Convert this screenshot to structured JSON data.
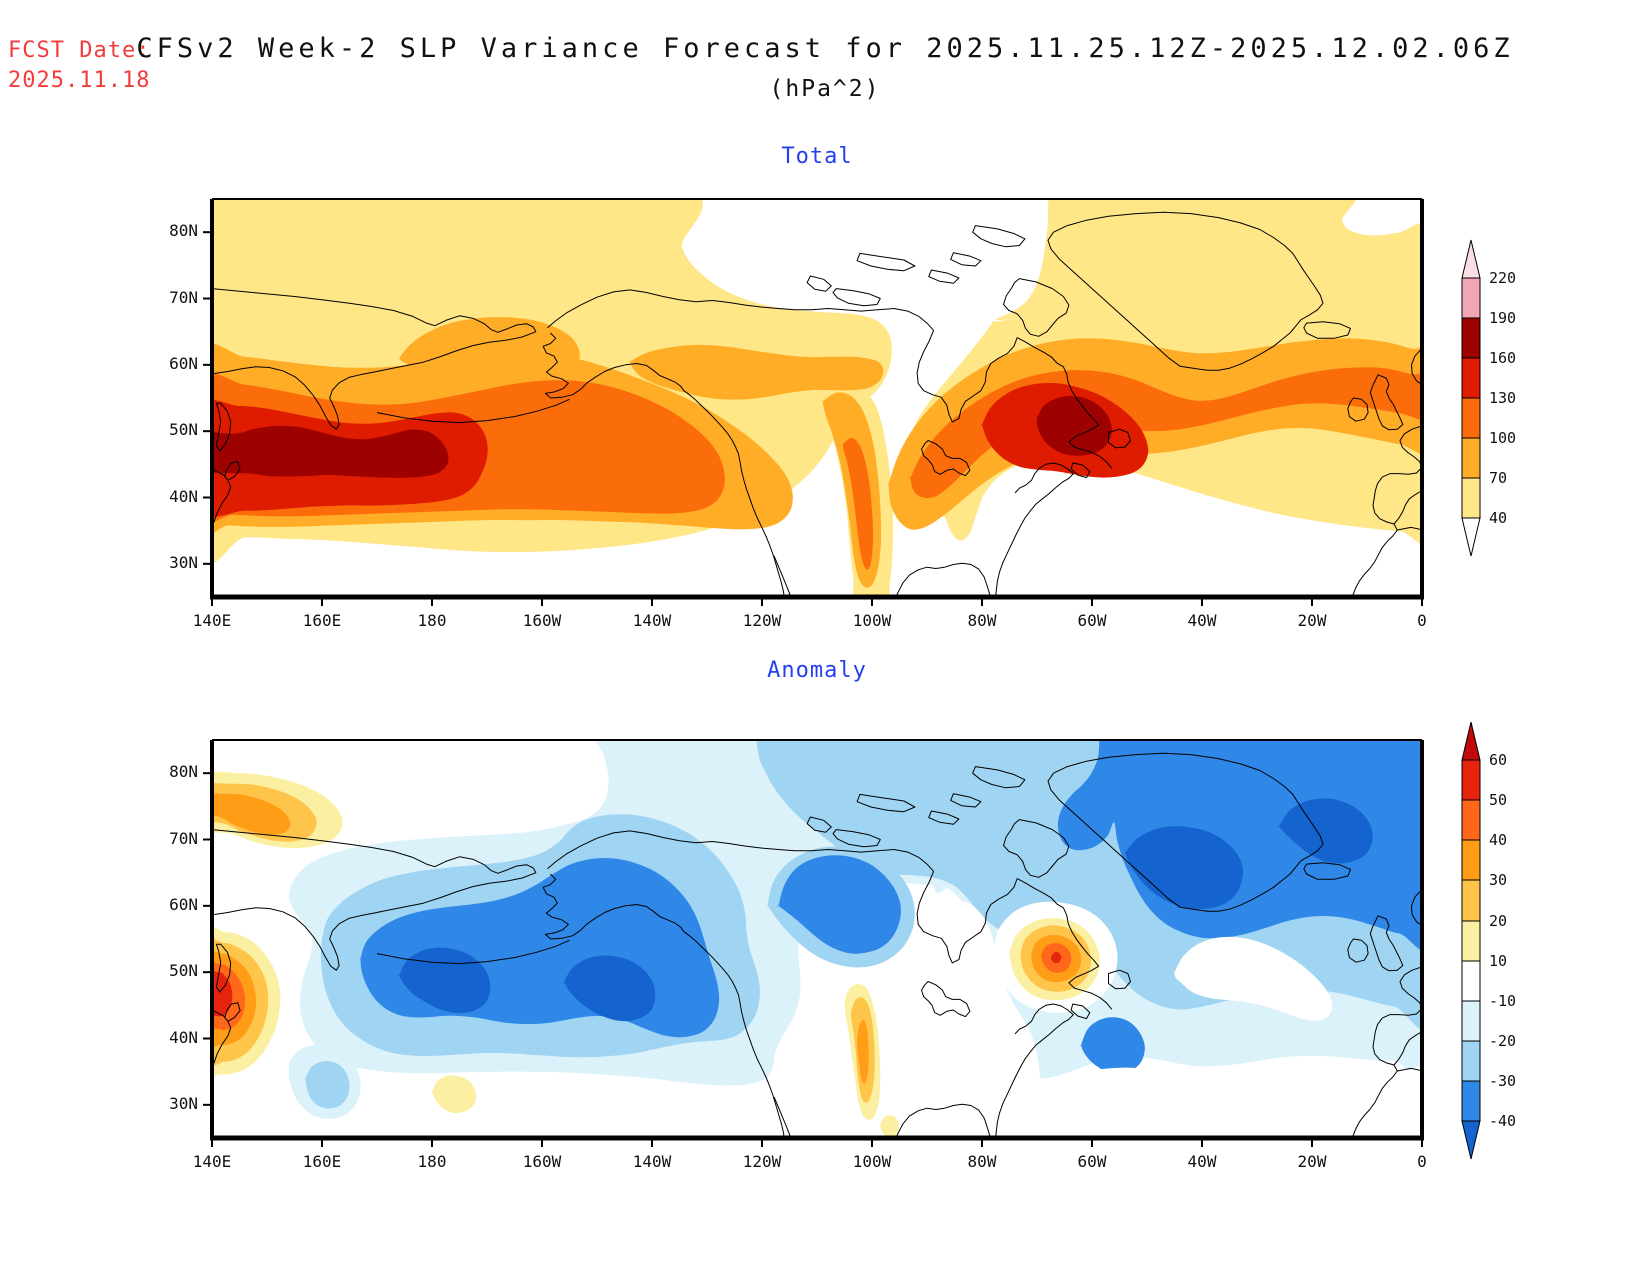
{
  "header": {
    "fcst_label": "FCST Date:",
    "fcst_date": "2025.11.18",
    "fcst_color": "#f23c3c",
    "title": "CFSv2 Week-2 SLP Variance Forecast for 2025.11.25.12Z-2025.12.02.06Z",
    "subtitle": "(hPa^2)"
  },
  "panels": [
    {
      "id": "total",
      "title": "Total",
      "title_color": "#2440ee",
      "x_ticks": [
        "140E",
        "160E",
        "180",
        "160W",
        "140W",
        "120W",
        "100W",
        "80W",
        "60W",
        "40W",
        "20W",
        "0"
      ],
      "y_ticks": [
        "80N",
        "70N",
        "60N",
        "50N",
        "40N",
        "30N"
      ],
      "level_colors": {
        "40": "#FFE687",
        "70": "#FFAD26",
        "100": "#FB6D0A",
        "130": "#DF1B00",
        "160": "#9D0100"
      },
      "colorbar": {
        "labels_top_to_bottom": [
          "220",
          "190",
          "160",
          "130",
          "100",
          "70",
          "40"
        ],
        "segment_colors_top_to_bottom": [
          "#F2A6B4",
          "#9D0100",
          "#DF1B00",
          "#FB6D0A",
          "#FFAD26",
          "#FFE687"
        ],
        "top_cap_color": "#FBDDE4",
        "bottom_cap_color": "#FFFFFF"
      }
    },
    {
      "id": "anomaly",
      "title": "Anomaly",
      "title_color": "#2440ee",
      "x_ticks": [
        "140E",
        "160E",
        "180",
        "160W",
        "140W",
        "120W",
        "100W",
        "80W",
        "60W",
        "40W",
        "20W",
        "0"
      ],
      "y_ticks": [
        "80N",
        "70N",
        "60N",
        "50N",
        "40N",
        "30N"
      ],
      "level_colors": {
        "-40": "#1563CF",
        "-30": "#2F87E8",
        "-20": "#9FD4F2",
        "-10": "#DCF2FB",
        "10": "#FBF0A2",
        "20": "#FFC44A",
        "30": "#FF9D17",
        "40": "#FF671A",
        "50": "#E6230D"
      },
      "colorbar": {
        "labels_top_to_bottom": [
          "60",
          "50",
          "40",
          "30",
          "20",
          "10",
          "-10",
          "-20",
          "-30",
          "-40"
        ],
        "segment_colors_top_to_bottom": [
          "#E6230D",
          "#FF671A",
          "#FF9D17",
          "#FFC44A",
          "#FBF0A2",
          "#FFFFFF",
          "#DCF2FB",
          "#9FD4F2",
          "#2F87E8"
        ],
        "top_cap_color": "#C00A0A",
        "bottom_cap_color": "#1563CF"
      }
    }
  ],
  "chart_data": [
    {
      "panel": "Total",
      "type": "heatmap",
      "subtype": "filled_contour_map",
      "field": "Week-2 sea-level-pressure variance forecast",
      "units": "hPa^2",
      "valid_period": "2025.11.25.12Z-2025.12.02.06Z",
      "forecast_date": "2025.11.18",
      "lon_range": [
        "140E",
        "0"
      ],
      "lat_range": [
        "~25N",
        "~85N"
      ],
      "contour_levels": [
        40,
        70,
        100,
        130,
        160,
        190,
        220
      ],
      "features": [
        {
          "region": "Northwest Pacific storm track, 145E-180 / 41-52N",
          "value": "maximum 160-190 (dark red), two cores near 153E,46N and 170E,47N"
        },
        {
          "region": "Gulf of Alaska / NE Pacific, 170W-130W / 48-58N",
          "value": "100-130 band extending to NA west coast"
        },
        {
          "region": "Bering Strait region up to ~67N",
          "value": "70-100"
        },
        {
          "region": "Central North America tongue along ~105-100W, 27-55N",
          "value": "70-100 with inner 100-130 streak"
        },
        {
          "region": "Eastern Canada (Quebec/Labrador), 78W-52W / 45-57N",
          "value": "maximum 160-190 (dark red) core near 62W,52N"
        },
        {
          "region": "North Atlantic band to British Isles / Iceland, 55-65N",
          "value": "100-130"
        },
        {
          "region": "Hemispheric mid/high-latitude background",
          "value": "40-70 (yellow), white over Arctic islands, interior N. America and subtropics"
        }
      ]
    },
    {
      "panel": "Anomaly",
      "type": "heatmap",
      "subtype": "filled_contour_map",
      "field": "Week-2 SLP variance anomaly",
      "units": "hPa^2",
      "lon_range": [
        "140E",
        "0"
      ],
      "lat_range": [
        "~25N",
        "~85N"
      ],
      "contour_levels": [
        -40,
        -30,
        -20,
        -10,
        10,
        20,
        30,
        40,
        50,
        60
      ],
      "features": [
        {
          "region": "North Pacific, 160E-125W / 35-60N",
          "value": "large negative anomaly, -30 with cores below -40 near 178E,46N and 148W,45N"
        },
        {
          "region": "Bering Strait / Chukchi",
          "value": "-20 to -30"
        },
        {
          "region": "Central-north Canada, 115W-95W / 53-67N",
          "value": "-30 blob"
        },
        {
          "region": "Greenland / N Atlantic / Iceland / NW Europe, 60W-0 / 50-85N",
          "value": "widespread -30 with -40 cores"
        },
        {
          "region": "South of Newfoundland, 62W-50W / 35-43N",
          "value": "-30 lobe"
        },
        {
          "region": "Sea of Japan / NW Pacific coast ~143E, 47N",
          "value": "positive max +50 (red core) ringed by +10..+40"
        },
        {
          "region": "East Siberian Arctic ~155E, 75N",
          "value": "+30 orange blob"
        },
        {
          "region": "Quebec ~68W, 53N",
          "value": "+40 orange blob with tiny +50 core"
        },
        {
          "region": "US Great Plains ~100W, 33-45N",
          "value": "+20 to +30 narrow streak"
        },
        {
          "region": "Central Pacific ~175E-172W, 29-34N",
          "value": "+10 patch"
        }
      ]
    }
  ]
}
